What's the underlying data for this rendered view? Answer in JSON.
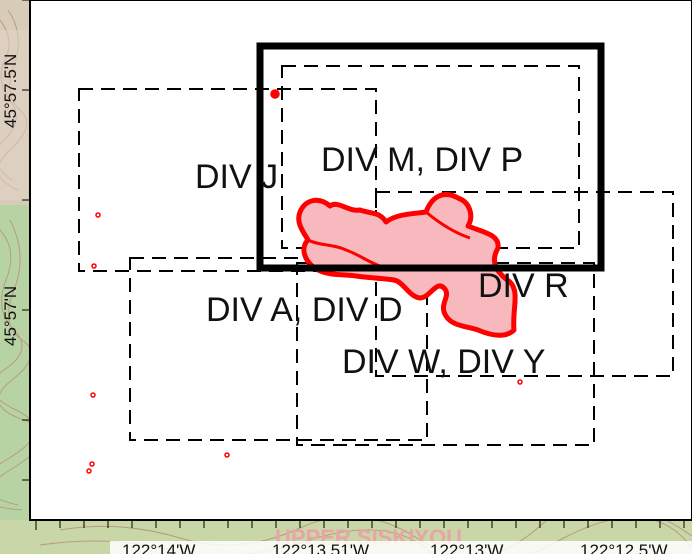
{
  "map": {
    "division_labels": {
      "div_j": "DIV J",
      "div_m_p": "DIV M, DIV P",
      "div_r": "DIV R",
      "div_a_d": "DIV A, DIV D",
      "div_w_y": "DIV W, DIV Y"
    },
    "latitude_labels": {
      "upper": "45°57.5'N",
      "lower": "45°57'N"
    },
    "longitude_labels": {
      "lon_1": "122°14'W",
      "lon_2": "122°13.51'W",
      "lon_3": "122°13'W",
      "lon_4": "122°12.5'W"
    },
    "basemap_text": "UPPER SISKIYOU"
  },
  "colors": {
    "fire_perimeter": "#ff0000",
    "fire_fill": "#f7b9bd",
    "frame": "#000000",
    "panel": "#ffffff",
    "basemap_green": "#b8d3a3",
    "basemap_tan": "#d8cbb8"
  }
}
